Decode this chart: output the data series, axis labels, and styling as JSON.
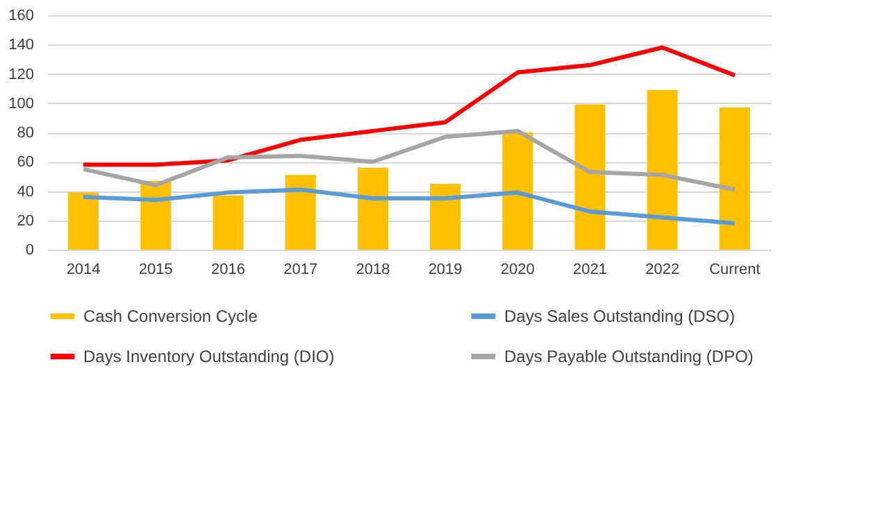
{
  "chart_data": {
    "type": "bar",
    "categories": [
      "2014",
      "2015",
      "2016",
      "2017",
      "2018",
      "2019",
      "2020",
      "2021",
      "2022",
      "Current"
    ],
    "series": [
      {
        "name": "Cash Conversion Cycle",
        "color": "#ffc000",
        "values": [
          39,
          47,
          37,
          51,
          56,
          45,
          80,
          99,
          109,
          97
        ]
      },
      {
        "name": "Days Sales Outstanding (DSO)",
        "type": "line",
        "color": "#5b9bd5",
        "values": [
          36,
          34,
          39,
          41,
          35,
          35,
          39,
          26,
          22,
          18
        ]
      },
      {
        "name": "Days Inventory Outstanding (DIO)",
        "type": "line",
        "color": "#ff0000",
        "values": [
          58,
          58,
          61,
          75,
          81,
          87,
          121,
          126,
          138,
          119
        ]
      },
      {
        "name": "Days Payable Outstanding (DPO)",
        "type": "line",
        "color": "#a5a5a5",
        "values": [
          55,
          44,
          63,
          64,
          60,
          77,
          81,
          53,
          51,
          41
        ]
      }
    ],
    "ylim": [
      0,
      160
    ],
    "yticks": [
      0,
      20,
      40,
      60,
      80,
      100,
      120,
      140,
      160
    ],
    "grid": "y",
    "legend": "bottom",
    "marker": "none",
    "line_style": "solid"
  }
}
